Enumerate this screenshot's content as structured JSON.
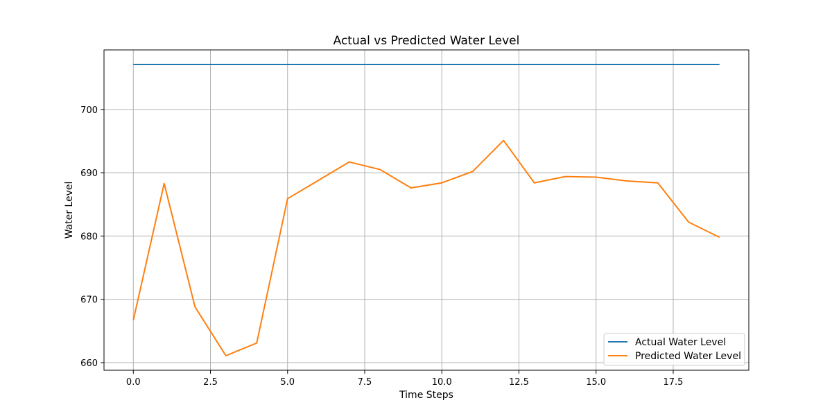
{
  "chart_data": {
    "type": "line",
    "title": "Actual vs Predicted Water Level",
    "xlabel": "Time Steps",
    "ylabel": "Water Level",
    "xlim": [
      -0.95,
      19.95
    ],
    "ylim": [
      658.8,
      709.4
    ],
    "xticks": [
      0.0,
      2.5,
      5.0,
      7.5,
      10.0,
      12.5,
      15.0,
      17.5
    ],
    "xtick_labels": [
      "0.0",
      "2.5",
      "5.0",
      "7.5",
      "10.0",
      "12.5",
      "15.0",
      "17.5"
    ],
    "yticks": [
      660,
      670,
      680,
      690,
      700
    ],
    "ytick_labels": [
      "660",
      "670",
      "680",
      "690",
      "700"
    ],
    "grid": true,
    "legend_position": "lower-right",
    "x": [
      0,
      1,
      2,
      3,
      4,
      5,
      6,
      7,
      8,
      9,
      10,
      11,
      12,
      13,
      14,
      15,
      16,
      17,
      18,
      19
    ],
    "series": [
      {
        "name": "Actual Water Level",
        "color": "#1f77b4",
        "values": [
          707.1,
          707.1,
          707.1,
          707.1,
          707.1,
          707.1,
          707.1,
          707.1,
          707.1,
          707.1,
          707.1,
          707.1,
          707.1,
          707.1,
          707.1,
          707.1,
          707.1,
          707.1,
          707.1,
          707.1
        ]
      },
      {
        "name": "Predicted Water Level",
        "color": "#ff7f0e",
        "values": [
          666.7,
          688.3,
          668.8,
          661.1,
          663.1,
          685.9,
          688.8,
          691.7,
          690.5,
          687.6,
          688.4,
          690.2,
          695.1,
          688.4,
          689.4,
          689.3,
          688.7,
          688.4,
          682.2,
          679.8
        ]
      }
    ]
  }
}
